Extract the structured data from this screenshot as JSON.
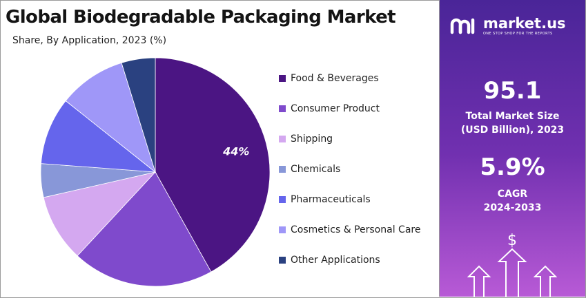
{
  "header": {
    "title": "Global Biodegradable Packaging Market",
    "subtitle": "Share, By Application, 2023 (%)"
  },
  "chart_data": {
    "type": "pie",
    "categories": [
      "Food & Beverages",
      "Consumer Product",
      "Shipping",
      "Chemicals",
      "Pharmaceuticals",
      "Cosmetics & Personal Care",
      "Other Applications"
    ],
    "values": [
      44,
      21,
      10,
      5,
      10,
      10,
      5
    ],
    "colors": [
      "#4b1583",
      "#7f4acc",
      "#d4a8f0",
      "#8897d8",
      "#6565ec",
      "#9f97f8",
      "#2a4180"
    ],
    "data_labels": [
      "44%",
      "",
      "",
      "",
      "",
      "",
      ""
    ],
    "legend_position": "right"
  },
  "legend": {
    "items": [
      {
        "label": "Food & Beverages",
        "color": "#4b1583"
      },
      {
        "label": "Consumer Product",
        "color": "#7f4acc"
      },
      {
        "label": "Shipping",
        "color": "#d4a8f0"
      },
      {
        "label": "Chemicals",
        "color": "#8897d8"
      },
      {
        "label": "Pharmaceuticals",
        "color": "#6565ec"
      },
      {
        "label": "Cosmetics & Personal Care",
        "color": "#9f97f8"
      },
      {
        "label": "Other Applications",
        "color": "#2a4180"
      }
    ]
  },
  "sidebar": {
    "brand_name": "market.us",
    "brand_tagline": "ONE STOP SHOP FOR THE REPORTS",
    "market_size_value": "95.1",
    "market_size_label_1": "Total Market Size",
    "market_size_label_2": "(USD Billion), 2023",
    "cagr_value": "5.9%",
    "cagr_label_1": "CAGR",
    "cagr_label_2": "2024-2033",
    "icon": "dollar-growth-arrows-icon"
  }
}
